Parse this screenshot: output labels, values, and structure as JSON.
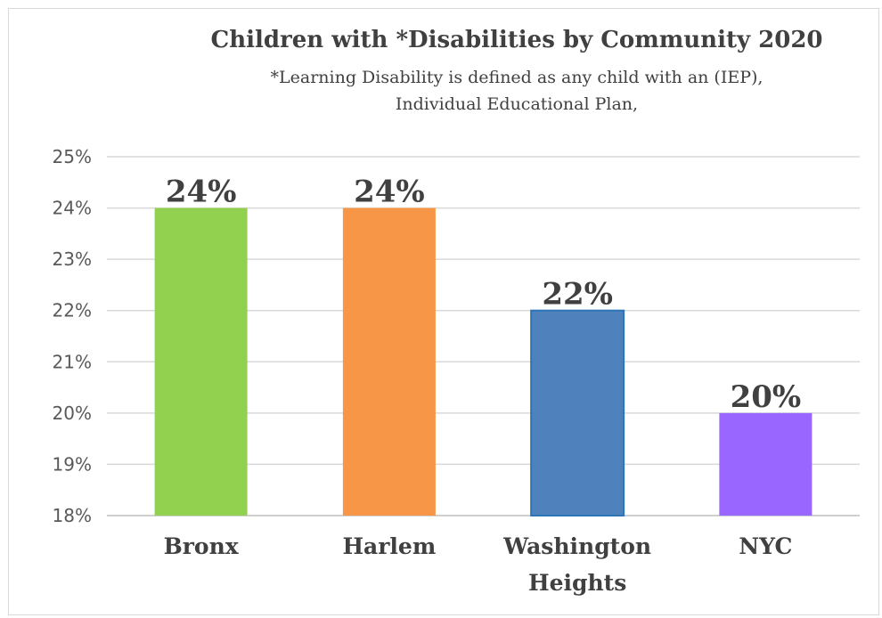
{
  "chart_data": {
    "type": "bar",
    "title": "Children with *Disabilities by Community 2020",
    "subtitle_lines": [
      "*Learning Disability is defined as any child with an (IEP),",
      "Individual Educational Plan,"
    ],
    "categories": [
      [
        "Bronx"
      ],
      [
        "Harlem"
      ],
      [
        "Washington",
        "Heights"
      ],
      [
        "NYC"
      ]
    ],
    "values": [
      24,
      24,
      22,
      20
    ],
    "data_labels": [
      "24%",
      "24%",
      "22%",
      "20%"
    ],
    "colors": [
      "#92d050",
      "#f79646",
      "#4f81bd",
      "#9966ff"
    ],
    "ylim": [
      18,
      25
    ],
    "yticks": [
      "18%",
      "19%",
      "20%",
      "21%",
      "22%",
      "23%",
      "24%",
      "25%"
    ],
    "grid": true,
    "legend": "none"
  }
}
